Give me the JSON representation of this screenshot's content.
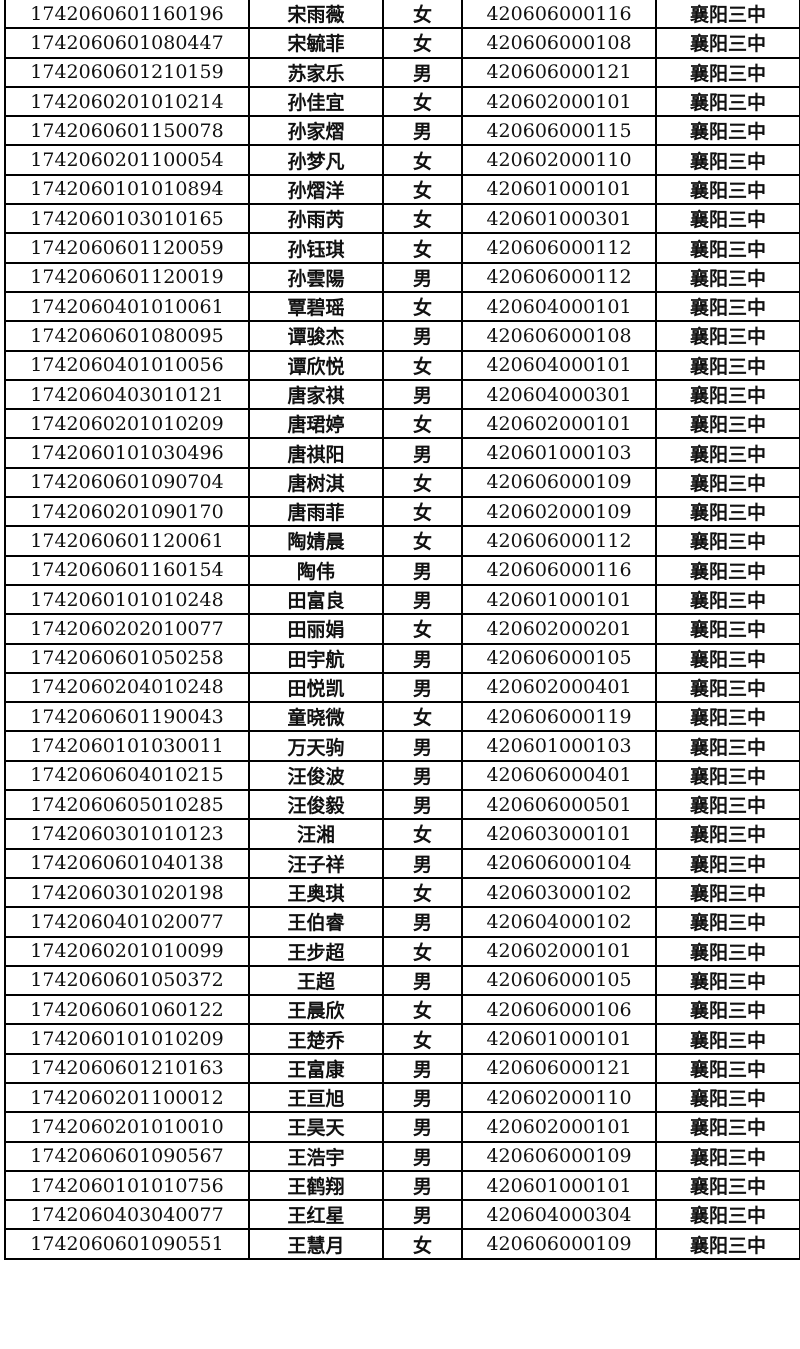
{
  "rows": [
    [
      "1742060601160196",
      "宋雨薇",
      "女",
      "420606000116",
      "襄阳三中"
    ],
    [
      "1742060601080447",
      "宋毓菲",
      "女",
      "420606000108",
      "襄阳三中"
    ],
    [
      "1742060601210159",
      "苏家乐",
      "男",
      "420606000121",
      "襄阳三中"
    ],
    [
      "1742060201010214",
      "孙佳宜",
      "女",
      "420602000101",
      "襄阳三中"
    ],
    [
      "1742060601150078",
      "孙家熠",
      "男",
      "420606000115",
      "襄阳三中"
    ],
    [
      "1742060201100054",
      "孙梦凡",
      "女",
      "420602000110",
      "襄阳三中"
    ],
    [
      "1742060101010894",
      "孙熠洋",
      "女",
      "420601000101",
      "襄阳三中"
    ],
    [
      "1742060103010165",
      "孙雨芮",
      "女",
      "420601000301",
      "襄阳三中"
    ],
    [
      "1742060601120059",
      "孙钰琪",
      "女",
      "420606000112",
      "襄阳三中"
    ],
    [
      "1742060601120019",
      "孙雲陽",
      "男",
      "420606000112",
      "襄阳三中"
    ],
    [
      "1742060401010061",
      "覃碧瑶",
      "女",
      "420604000101",
      "襄阳三中"
    ],
    [
      "1742060601080095",
      "谭骏杰",
      "男",
      "420606000108",
      "襄阳三中"
    ],
    [
      "1742060401010056",
      "谭欣悦",
      "女",
      "420604000101",
      "襄阳三中"
    ],
    [
      "1742060403010121",
      "唐家祺",
      "男",
      "420604000301",
      "襄阳三中"
    ],
    [
      "1742060201010209",
      "唐珺婷",
      "女",
      "420602000101",
      "襄阳三中"
    ],
    [
      "1742060101030496",
      "唐祺阳",
      "男",
      "420601000103",
      "襄阳三中"
    ],
    [
      "1742060601090704",
      "唐树淇",
      "女",
      "420606000109",
      "襄阳三中"
    ],
    [
      "1742060201090170",
      "唐雨菲",
      "女",
      "420602000109",
      "襄阳三中"
    ],
    [
      "1742060601120061",
      "陶婧晨",
      "女",
      "420606000112",
      "襄阳三中"
    ],
    [
      "1742060601160154",
      "陶伟",
      "男",
      "420606000116",
      "襄阳三中"
    ],
    [
      "1742060101010248",
      "田富良",
      "男",
      "420601000101",
      "襄阳三中"
    ],
    [
      "1742060202010077",
      "田丽娟",
      "女",
      "420602000201",
      "襄阳三中"
    ],
    [
      "1742060601050258",
      "田宇航",
      "男",
      "420606000105",
      "襄阳三中"
    ],
    [
      "1742060204010248",
      "田悦凯",
      "男",
      "420602000401",
      "襄阳三中"
    ],
    [
      "1742060601190043",
      "童晓微",
      "女",
      "420606000119",
      "襄阳三中"
    ],
    [
      "1742060101030011",
      "万天驹",
      "男",
      "420601000103",
      "襄阳三中"
    ],
    [
      "1742060604010215",
      "汪俊波",
      "男",
      "420606000401",
      "襄阳三中"
    ],
    [
      "1742060605010285",
      "汪俊毅",
      "男",
      "420606000501",
      "襄阳三中"
    ],
    [
      "1742060301010123",
      "汪湘",
      "女",
      "420603000101",
      "襄阳三中"
    ],
    [
      "1742060601040138",
      "汪子祥",
      "男",
      "420606000104",
      "襄阳三中"
    ],
    [
      "1742060301020198",
      "王奥琪",
      "女",
      "420603000102",
      "襄阳三中"
    ],
    [
      "1742060401020077",
      "王伯睿",
      "男",
      "420604000102",
      "襄阳三中"
    ],
    [
      "1742060201010099",
      "王步超",
      "女",
      "420602000101",
      "襄阳三中"
    ],
    [
      "1742060601050372",
      "王超",
      "男",
      "420606000105",
      "襄阳三中"
    ],
    [
      "1742060601060122",
      "王晨欣",
      "女",
      "420606000106",
      "襄阳三中"
    ],
    [
      "1742060101010209",
      "王楚乔",
      "女",
      "420601000101",
      "襄阳三中"
    ],
    [
      "1742060601210163",
      "王富康",
      "男",
      "420606000121",
      "襄阳三中"
    ],
    [
      "1742060201100012",
      "王亘旭",
      "男",
      "420602000110",
      "襄阳三中"
    ],
    [
      "1742060201010010",
      "王昊天",
      "男",
      "420602000101",
      "襄阳三中"
    ],
    [
      "1742060601090567",
      "王浩宇",
      "男",
      "420606000109",
      "襄阳三中"
    ],
    [
      "1742060101010756",
      "王鹤翔",
      "男",
      "420601000101",
      "襄阳三中"
    ],
    [
      "1742060403040077",
      "王红星",
      "男",
      "420604000304",
      "襄阳三中"
    ],
    [
      "1742060601090551",
      "王慧月",
      "女",
      "420606000109",
      "襄阳三中"
    ]
  ]
}
